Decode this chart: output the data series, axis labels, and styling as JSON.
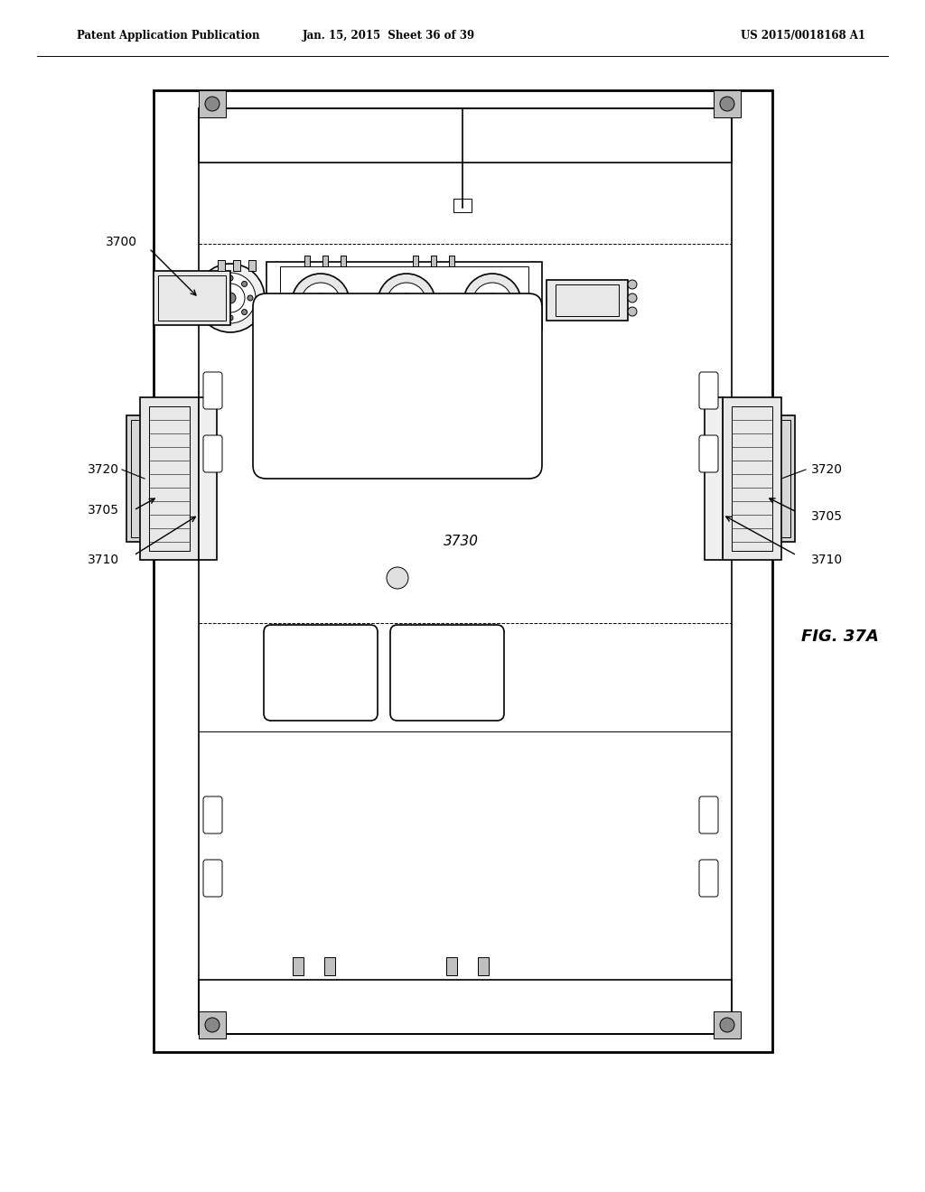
{
  "bg_color": "#ffffff",
  "line_color": "#000000",
  "header_left": "Patent Application Publication",
  "header_center": "Jan. 15, 2015  Sheet 36 of 39",
  "header_right": "US 2015/0018168 A1",
  "fig_label": "FIG. 37A",
  "label_3700": "3700",
  "label_3705_left": "3705",
  "label_3705_right": "3705",
  "label_3710_left": "3710",
  "label_3710_right": "3710",
  "label_3720_left": "3720",
  "label_3720_right": "3720",
  "label_3730": "3730"
}
